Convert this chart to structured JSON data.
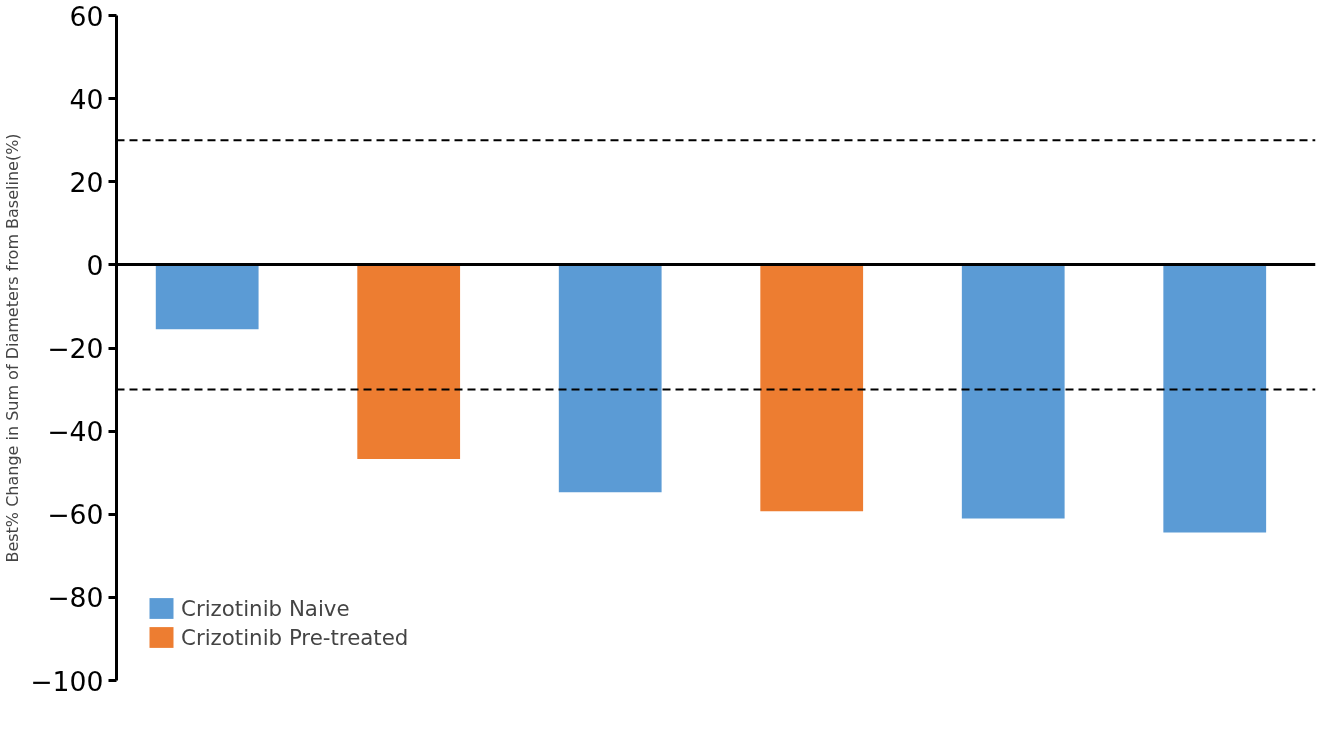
{
  "chart_data": {
    "type": "bar",
    "ylabel": "Best% Change in Sum of Diameters from Baseline(%)",
    "categories": [
      null,
      null,
      null,
      null,
      null,
      null
    ],
    "series": [
      {
        "name": "Crizotinib Naive",
        "color": "#5b9bd5",
        "values": [
          -15.5,
          null,
          -54.7,
          null,
          -61,
          -64.4
        ]
      },
      {
        "name": "Crizotinib Pre-treated",
        "color": "#ed7d31",
        "values": [
          null,
          -46.7,
          null,
          -59.3,
          null,
          null
        ]
      }
    ],
    "ylim": [
      -100,
      60
    ],
    "yticks": [
      -100,
      -80,
      -60,
      -40,
      -20,
      0,
      20,
      40,
      60
    ],
    "ref_lines": [
      {
        "axis": "y",
        "value": 30,
        "label": null,
        "line_style": "dashed"
      },
      {
        "axis": "y",
        "value": -30,
        "label": null,
        "line_style": "dashed"
      }
    ],
    "legend": "bottom left"
  }
}
